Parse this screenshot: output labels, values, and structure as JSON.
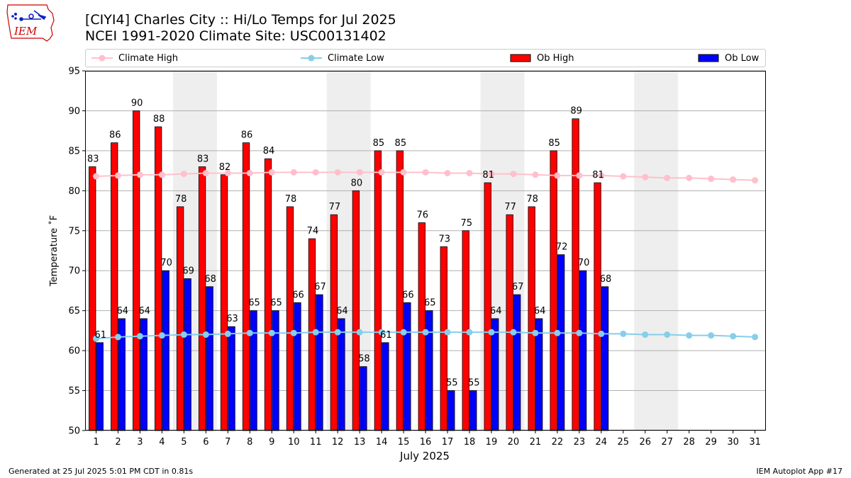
{
  "header": {
    "logo_text": "IEM",
    "title_line1": "[CIYI4] Charles City :: Hi/Lo Temps for Jul 2025",
    "title_line2": "NCEI 1991-2020 Climate Site: USC00131402"
  },
  "legend": {
    "climate_high": "Climate High",
    "climate_low": "Climate Low",
    "ob_high": "Ob High",
    "ob_low": "Ob Low"
  },
  "footer": {
    "generated": "Generated at 25 Jul 2025 5:01 PM CDT in 0.81s",
    "app": "IEM Autoplot App #17"
  },
  "chart_data": {
    "type": "bar",
    "xlabel": "July 2025",
    "ylabel": "Temperature ˚F",
    "ylim": [
      50,
      95
    ],
    "yticks": [
      50,
      55,
      60,
      65,
      70,
      75,
      80,
      85,
      90,
      95
    ],
    "grid": true,
    "legend_position": "top",
    "weekend_shading_days": [
      [
        5,
        6
      ],
      [
        12,
        13
      ],
      [
        19,
        20
      ],
      [
        26,
        27
      ]
    ],
    "days": [
      1,
      2,
      3,
      4,
      5,
      6,
      7,
      8,
      9,
      10,
      11,
      12,
      13,
      14,
      15,
      16,
      17,
      18,
      19,
      20,
      21,
      22,
      23,
      24,
      25,
      26,
      27,
      28,
      29,
      30,
      31
    ],
    "series": [
      {
        "name": "Ob High",
        "kind": "bar",
        "color": "#ff0000",
        "values": [
          83,
          86,
          90,
          88,
          78,
          83,
          82,
          86,
          84,
          78,
          74,
          77,
          80,
          85,
          85,
          76,
          73,
          75,
          81,
          77,
          78,
          85,
          89,
          81
        ]
      },
      {
        "name": "Ob Low",
        "kind": "bar",
        "color": "#0000ff",
        "values": [
          61,
          64,
          64,
          70,
          69,
          68,
          63,
          65,
          65,
          66,
          67,
          64,
          58,
          61,
          66,
          65,
          55,
          55,
          64,
          67,
          64,
          72,
          70,
          68
        ]
      },
      {
        "name": "Climate High",
        "kind": "line",
        "color": "#ffc0cb",
        "values": [
          81.8,
          81.9,
          82.0,
          82.0,
          82.1,
          82.2,
          82.2,
          82.2,
          82.3,
          82.3,
          82.3,
          82.3,
          82.3,
          82.3,
          82.3,
          82.3,
          82.2,
          82.2,
          82.1,
          82.1,
          82.0,
          81.9,
          81.9,
          81.9,
          81.8,
          81.7,
          81.6,
          81.6,
          81.5,
          81.4,
          81.3
        ]
      },
      {
        "name": "Climate Low",
        "kind": "line",
        "color": "#87ceeb",
        "values": [
          61.5,
          61.7,
          61.8,
          61.9,
          62.0,
          62.0,
          62.1,
          62.2,
          62.2,
          62.2,
          62.3,
          62.3,
          62.3,
          62.3,
          62.3,
          62.3,
          62.3,
          62.3,
          62.3,
          62.3,
          62.2,
          62.2,
          62.2,
          62.1,
          62.1,
          62.0,
          62.0,
          61.9,
          61.9,
          61.8,
          61.7
        ]
      }
    ]
  }
}
